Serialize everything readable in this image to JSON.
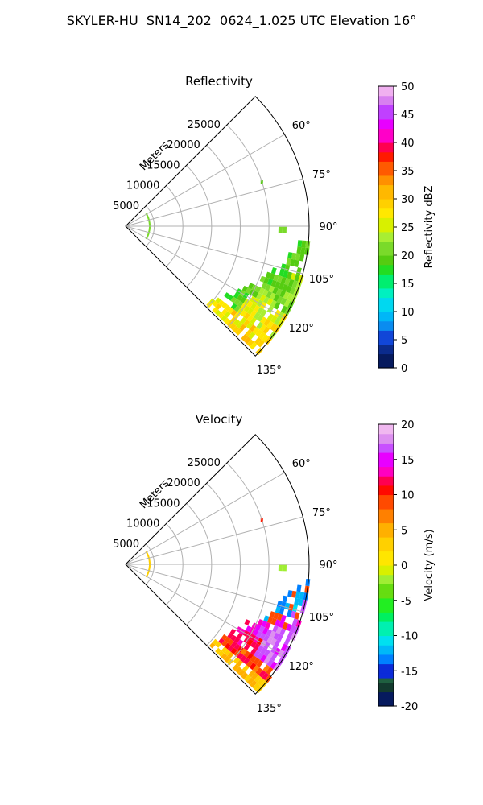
{
  "title": "SKYLER-HU  SN14_202  0624_1.025 UTC Elevation 16°",
  "chart_data": [
    {
      "type": "polar_sector",
      "title": "Reflectivity",
      "range_label": "Meters",
      "range_ticks": [
        5000,
        10000,
        15000,
        20000,
        25000
      ],
      "range_max": 32000,
      "angle_ticks": [
        "60°",
        "75°",
        "90°",
        "105°",
        "120°",
        "135°"
      ],
      "angle_range_deg": [
        45,
        135
      ],
      "grid": true,
      "colorbar": {
        "label": "Reflectivity dBZ",
        "min": 0,
        "max": 50,
        "ticks": [
          0,
          5,
          10,
          15,
          20,
          25,
          30,
          35,
          40,
          45,
          50
        ]
      },
      "dominant_values": {
        "near_90_to_115_deg": 20,
        "near_120_to_135_deg": 25,
        "edge_135_deg": 35
      }
    },
    {
      "type": "polar_sector",
      "title": "Velocity",
      "range_label": "Meters",
      "range_ticks": [
        5000,
        10000,
        15000,
        20000,
        25000
      ],
      "range_max": 32000,
      "angle_ticks": [
        "60°",
        "75°",
        "90°",
        "105°",
        "120°",
        "135°"
      ],
      "angle_range_deg": [
        45,
        135
      ],
      "grid": true,
      "colorbar": {
        "label": "Velocity (m/s)",
        "min": -20,
        "max": 20,
        "ticks": [
          -20,
          -15,
          -10,
          -5,
          0,
          5,
          10,
          15,
          20
        ]
      },
      "dominant_values": {
        "near_100_to_115_deg": -12,
        "near_115_to_125_deg": 15,
        "near_120_to_135_deg": 8,
        "edge_135_deg": 2
      }
    }
  ]
}
